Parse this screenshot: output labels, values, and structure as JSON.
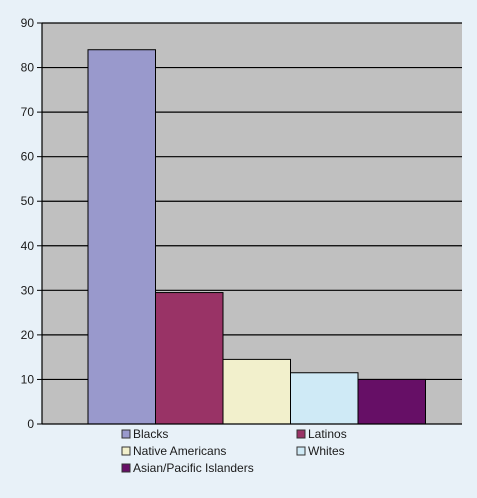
{
  "chart_data": {
    "type": "bar",
    "title": "",
    "xlabel": "",
    "ylabel": "",
    "ylim": [
      0,
      90
    ],
    "yticks": [
      0,
      10,
      20,
      30,
      40,
      50,
      60,
      70,
      80,
      90
    ],
    "grid": true,
    "legend_position": "bottom",
    "series": [
      {
        "name": "Blacks",
        "value": 84,
        "color": "#9999cc"
      },
      {
        "name": "Latinos",
        "value": 29.5,
        "color": "#993366"
      },
      {
        "name": "Native Americans",
        "value": 14.5,
        "color": "#f2f0cc"
      },
      {
        "name": "Whites",
        "value": 11.5,
        "color": "#cfeaf6"
      },
      {
        "name": "Asian/Pacific Islanders",
        "value": 10,
        "color": "#660f66"
      }
    ],
    "plot_background": "#c0c0c0",
    "page_background": "#e8f1f8"
  }
}
